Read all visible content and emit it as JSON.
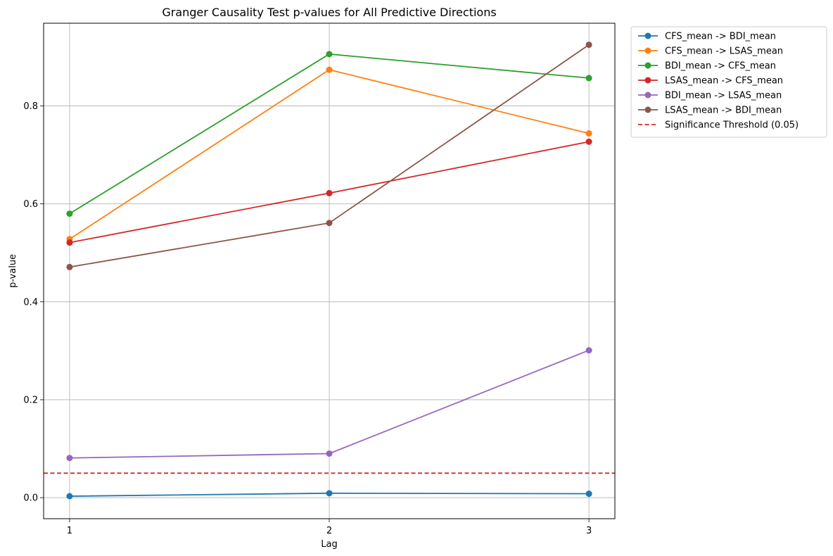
{
  "chart_data": {
    "type": "line",
    "title": "Granger Causality Test p-values for All Predictive Directions",
    "xlabel": "Lag",
    "ylabel": "p-value",
    "x": [
      1,
      2,
      3
    ],
    "xticks": [
      "1",
      "2",
      "3"
    ],
    "yticks": [
      "0.0",
      "0.2",
      "0.4",
      "0.6",
      "0.8"
    ],
    "xlim": [
      0.9,
      3.1
    ],
    "ylim": [
      -0.043,
      0.969
    ],
    "grid": true,
    "legend_position": "outside-top-right",
    "series": [
      {
        "name": "CFS_mean -> BDI_mean",
        "color": "#1f77b4",
        "values": [
          0.003,
          0.009,
          0.008
        ]
      },
      {
        "name": "CFS_mean -> LSAS_mean",
        "color": "#ff7f0e",
        "values": [
          0.528,
          0.874,
          0.744
        ]
      },
      {
        "name": "BDI_mean -> CFS_mean",
        "color": "#2ca02c",
        "values": [
          0.58,
          0.906,
          0.857
        ]
      },
      {
        "name": "LSAS_mean -> CFS_mean",
        "color": "#d62728",
        "values": [
          0.521,
          0.622,
          0.727
        ]
      },
      {
        "name": "BDI_mean -> LSAS_mean",
        "color": "#9467bd",
        "values": [
          0.081,
          0.09,
          0.301
        ]
      },
      {
        "name": "LSAS_mean -> BDI_mean",
        "color": "#8c564b",
        "values": [
          0.471,
          0.561,
          0.925
        ]
      }
    ],
    "threshold": {
      "name": "Significance Threshold (0.05)",
      "value": 0.05,
      "color": "#d62728"
    }
  }
}
